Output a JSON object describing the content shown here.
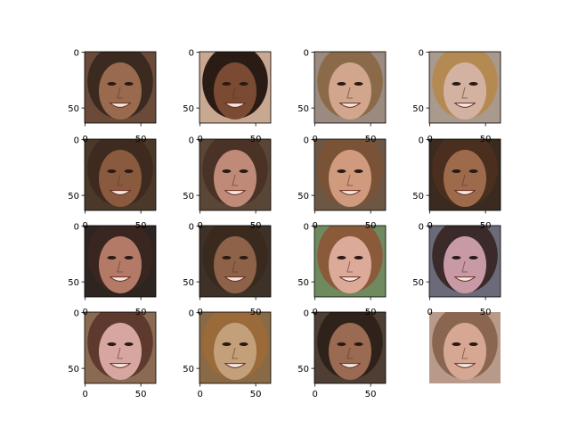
{
  "figure": {
    "rows": 4,
    "cols": 4,
    "image_size": 64,
    "y_ticks": [
      "0",
      "50"
    ],
    "x_ticks": [
      "0",
      "50"
    ],
    "hidden_axes": [
      15
    ],
    "x_ticks_visible_rows": [
      3
    ],
    "x_ticks_top_visible_rows": [
      1,
      2,
      3
    ],
    "tones": [
      {
        "skin": "#9a6a4e",
        "hair": "#3b2a1f",
        "bg": "#6b4a3a"
      },
      {
        "skin": "#7a4a32",
        "hair": "#2a1c14",
        "bg": "#c9a892"
      },
      {
        "skin": "#d1a68c",
        "hair": "#8a6a48",
        "bg": "#9a8a80"
      },
      {
        "skin": "#d4b2a2",
        "hair": "#b58a52",
        "bg": "#a89a8c"
      },
      {
        "skin": "#8a5a3e",
        "hair": "#3e2a1e",
        "bg": "#4a3828"
      },
      {
        "skin": "#c08a78",
        "hair": "#4a3226",
        "bg": "#5a4636"
      },
      {
        "skin": "#d09a7e",
        "hair": "#7a5236",
        "bg": "#6e5644"
      },
      {
        "skin": "#9e6a4c",
        "hair": "#4a2e1e",
        "bg": "#3a2a20"
      },
      {
        "skin": "#b47a68",
        "hair": "#3a2620",
        "bg": "#2e2420"
      },
      {
        "skin": "#8e6248",
        "hair": "#3a2a1e",
        "bg": "#3e3228"
      },
      {
        "skin": "#dcaa98",
        "hair": "#8a5a3a",
        "bg": "#6e8a5e"
      },
      {
        "skin": "#c89aa6",
        "hair": "#3a2a2a",
        "bg": "#6a6a78"
      },
      {
        "skin": "#d8a6a0",
        "hair": "#5e3a2e",
        "bg": "#8a6a52"
      },
      {
        "skin": "#c4a07a",
        "hair": "#9a6a38",
        "bg": "#8a6a46"
      },
      {
        "skin": "#9a6a52",
        "hair": "#2e221a",
        "bg": "#4e3e34"
      },
      {
        "skin": "#d6a894",
        "hair": "#8a6650",
        "bg": "#b89a8a"
      }
    ]
  }
}
